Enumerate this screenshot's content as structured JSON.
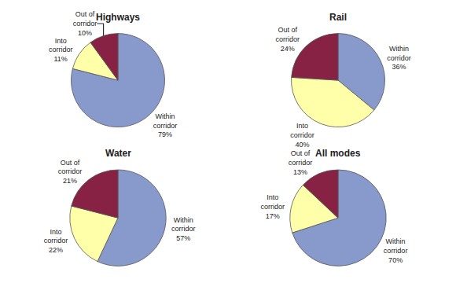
{
  "chart_data": [
    {
      "type": "pie",
      "title": "Highways",
      "categories": [
        "Within\ncorridor",
        "Into\ncorridor",
        "Out of\ncorridor"
      ],
      "values": [
        79,
        11,
        10
      ],
      "value_labels": [
        "79%",
        "11%",
        "10%"
      ],
      "colors": [
        "#8899cc",
        "#ffffaa",
        "#882244"
      ],
      "data_labels": true
    },
    {
      "type": "pie",
      "title": "Rail",
      "categories": [
        "Within\ncorridor",
        "Into\ncorridor",
        "Out of\ncorridor"
      ],
      "values": [
        36,
        40,
        24
      ],
      "value_labels": [
        "36%",
        "40%",
        "24%"
      ],
      "colors": [
        "#8899cc",
        "#ffffaa",
        "#882244"
      ],
      "data_labels": true
    },
    {
      "type": "pie",
      "title": "Water",
      "categories": [
        "Within\ncorridor",
        "Into\ncorridor",
        "Out of\ncorridor"
      ],
      "values": [
        57,
        22,
        21
      ],
      "value_labels": [
        "57%",
        "22%",
        "21%"
      ],
      "colors": [
        "#8899cc",
        "#ffffaa",
        "#882244"
      ],
      "data_labels": true
    },
    {
      "type": "pie",
      "title": "All modes",
      "categories": [
        "Within\ncorridor",
        "Into\ncorridor",
        "Out of\ncorridor"
      ],
      "values": [
        70,
        17,
        13
      ],
      "value_labels": [
        "70%",
        "17%",
        "13%"
      ],
      "colors": [
        "#8899cc",
        "#ffffaa",
        "#882244"
      ],
      "data_labels": true
    }
  ]
}
